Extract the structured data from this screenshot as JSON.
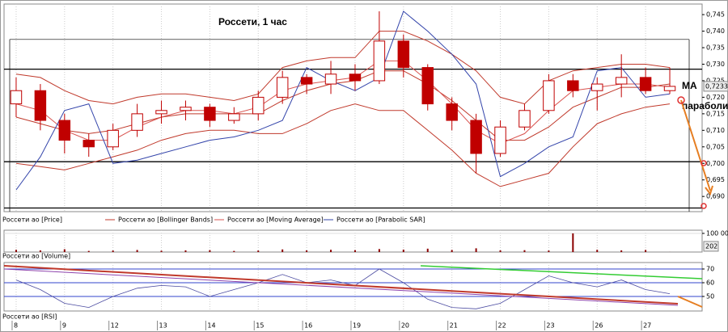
{
  "chart_data": [
    {
      "type": "candlestick",
      "title": "Россети, 1 час",
      "categories": [
        "8",
        null,
        "9",
        null,
        "12",
        null,
        "13",
        null,
        "14",
        null,
        "15",
        null,
        "16",
        null,
        "19",
        null,
        "20",
        null,
        "21",
        null,
        "22",
        null,
        "23",
        null,
        "26",
        null,
        "27",
        null
      ],
      "candles": {
        "name": "Россети ао [Price]",
        "color": "#c00000",
        "open": [
          0.718,
          0.722,
          0.713,
          0.707,
          0.705,
          0.71,
          0.715,
          0.716,
          0.717,
          0.713,
          0.715,
          0.72,
          0.726,
          0.724,
          0.727,
          0.725,
          0.737,
          0.729,
          0.718,
          0.713,
          0.703,
          0.711,
          0.716,
          0.725,
          0.722,
          0.724,
          0.726,
          0.722
        ],
        "high": [
          0.726,
          0.724,
          0.715,
          0.709,
          0.712,
          0.718,
          0.719,
          0.719,
          0.718,
          0.717,
          0.722,
          0.728,
          0.727,
          0.731,
          0.73,
          0.746,
          0.739,
          0.73,
          0.72,
          0.715,
          0.713,
          0.718,
          0.727,
          0.727,
          0.726,
          0.733,
          0.729,
          0.729
        ],
        "low": [
          0.714,
          0.71,
          0.703,
          0.702,
          0.704,
          0.708,
          0.712,
          0.713,
          0.711,
          0.712,
          0.713,
          0.718,
          0.721,
          0.721,
          0.722,
          0.724,
          0.726,
          0.716,
          0.71,
          0.697,
          0.702,
          0.71,
          0.715,
          0.72,
          0.716,
          0.72,
          0.721,
          0.721
        ],
        "close": [
          0.722,
          0.713,
          0.707,
          0.705,
          0.71,
          0.715,
          0.716,
          0.717,
          0.713,
          0.715,
          0.72,
          0.726,
          0.724,
          0.727,
          0.725,
          0.737,
          0.729,
          0.718,
          0.713,
          0.703,
          0.711,
          0.716,
          0.725,
          0.722,
          0.724,
          0.726,
          0.722,
          0.7233
        ]
      },
      "bands": {
        "name": "Россети ао [Bollinger Bands]",
        "color": "#c0392b",
        "upper": [
          0.727,
          0.726,
          0.722,
          0.719,
          0.718,
          0.72,
          0.721,
          0.721,
          0.72,
          0.719,
          0.721,
          0.729,
          0.731,
          0.732,
          0.732,
          0.74,
          0.74,
          0.737,
          0.733,
          0.728,
          0.72,
          0.718,
          0.725,
          0.728,
          0.729,
          0.73,
          0.73,
          0.729
        ],
        "middle": [
          0.714,
          0.712,
          0.71,
          0.709,
          0.71,
          0.712,
          0.714,
          0.715,
          0.715,
          0.715,
          0.715,
          0.719,
          0.722,
          0.724,
          0.725,
          0.728,
          0.728,
          0.724,
          0.719,
          0.713,
          0.707,
          0.707,
          0.711,
          0.717,
          0.72,
          0.723,
          0.723,
          0.724
        ],
        "lower": [
          0.7,
          0.699,
          0.698,
          0.7,
          0.702,
          0.704,
          0.707,
          0.709,
          0.71,
          0.71,
          0.709,
          0.709,
          0.712,
          0.716,
          0.718,
          0.716,
          0.716,
          0.71,
          0.704,
          0.697,
          0.693,
          0.695,
          0.697,
          0.705,
          0.712,
          0.715,
          0.717,
          0.718
        ]
      },
      "series": [
        {
          "name": "Россети ао [Moving Average]",
          "color": "#d9534f",
          "values": [
            0.718,
            0.716,
            0.71,
            0.707,
            0.707,
            0.711,
            0.714,
            0.716,
            0.716,
            0.715,
            0.717,
            0.722,
            0.724,
            0.725,
            0.726,
            0.731,
            0.731,
            0.725,
            0.718,
            0.71,
            0.706,
            0.709,
            0.716,
            0.722,
            0.723,
            0.724,
            0.724,
            0.723
          ]
        },
        {
          "name": "Россети ао [Parabolic SAR]",
          "color": "#3344aa",
          "values": [
            0.692,
            0.702,
            0.716,
            0.718,
            0.7,
            0.701,
            0.703,
            0.705,
            0.707,
            0.708,
            0.71,
            0.713,
            0.729,
            0.725,
            0.722,
            0.726,
            0.746,
            0.74,
            0.733,
            0.724,
            0.696,
            0.7,
            0.705,
            0.708,
            0.728,
            0.729,
            0.72,
            0.721
          ]
        }
      ],
      "levels": [
        0.7375,
        0.7285,
        0.7005,
        0.6865
      ],
      "last_price": {
        "value": 0.7233,
        "label": "0,7233"
      },
      "annotations": [
        "МА",
        "параболи"
      ],
      "ylim": [
        0.6854,
        0.7482
      ],
      "yticks": [
        {
          "value": 0.745,
          "label": "0,745"
        },
        {
          "value": 0.74,
          "label": "0,740"
        },
        {
          "value": 0.735,
          "label": "0,735"
        },
        {
          "value": 0.73,
          "label": "0,730"
        },
        {
          "value": 0.725,
          "label": "0,725"
        },
        {
          "value": 0.72,
          "label": "0,720"
        },
        {
          "value": 0.715,
          "label": "0,715"
        },
        {
          "value": 0.71,
          "label": "0,710"
        },
        {
          "value": 0.705,
          "label": "0,705"
        },
        {
          "value": 0.7,
          "label": "0,700"
        },
        {
          "value": 0.695,
          "label": "0,695"
        },
        {
          "value": 0.69,
          "label": "0,690"
        }
      ]
    },
    {
      "type": "bar",
      "series": [
        {
          "name": "Россети ао [Volume]",
          "color": "#8b0000",
          "values": [
            12000,
            9000,
            15000,
            6000,
            8000,
            11000,
            7000,
            9000,
            10000,
            6000,
            8000,
            14000,
            9000,
            12000,
            10000,
            16000,
            13000,
            18000,
            11000,
            20000,
            9000,
            10000,
            8000,
            100000,
            12000,
            9000,
            11000,
            202
          ],
          "last_label": "202"
        }
      ],
      "ylim": [
        0,
        117000
      ],
      "yticks": [
        {
          "value": 100000,
          "label": "100 000"
        }
      ]
    },
    {
      "type": "line",
      "series": [
        {
          "name": "Россети ао [RSI]",
          "color": "#4a4aa0",
          "values": [
            62,
            55,
            45,
            42,
            50,
            56,
            58,
            57,
            50,
            55,
            60,
            66,
            60,
            62,
            58,
            70,
            60,
            48,
            42,
            41,
            45,
            55,
            65,
            60,
            57,
            62,
            55,
            52
          ]
        }
      ],
      "ylim": [
        39.4,
        74.7
      ],
      "yticks": [
        50,
        60,
        70
      ]
    }
  ]
}
